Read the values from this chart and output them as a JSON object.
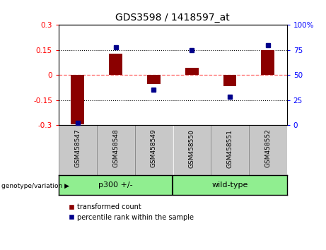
{
  "title": "GDS3598 / 1418597_at",
  "samples": [
    "GSM458547",
    "GSM458548",
    "GSM458549",
    "GSM458550",
    "GSM458551",
    "GSM458552"
  ],
  "bar_values": [
    -0.295,
    0.13,
    -0.055,
    0.045,
    -0.065,
    0.15
  ],
  "percentile_values": [
    2,
    78,
    35,
    75,
    28,
    80
  ],
  "ylim_left": [
    -0.3,
    0.3
  ],
  "ylim_right": [
    0,
    100
  ],
  "yticks_left": [
    -0.3,
    -0.15,
    0,
    0.15,
    0.3
  ],
  "yticks_right": [
    0,
    25,
    50,
    75,
    100
  ],
  "bar_color": "#8B0000",
  "percentile_color": "#00008B",
  "group1_label": "p300 +/-",
  "group2_label": "wild-type",
  "group1_samples": [
    0,
    1,
    2
  ],
  "group2_samples": [
    3,
    4,
    5
  ],
  "group_color": "#90EE90",
  "tick_label_area_color": "#C8C8C8",
  "tick_cell_border_color": "#888888",
  "zero_line_color": "#FF6666",
  "dotted_line_color": "black",
  "legend_bar_label": "transformed count",
  "legend_pct_label": "percentile rank within the sample",
  "xlabel_area": "genotype/variation"
}
